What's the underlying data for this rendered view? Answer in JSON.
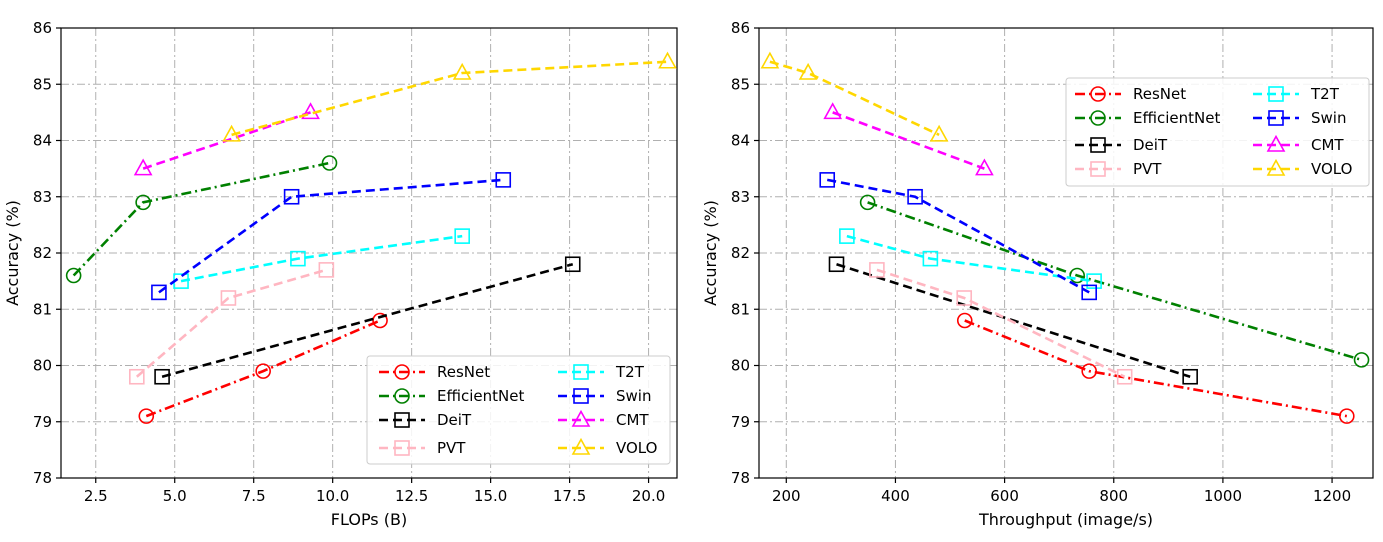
{
  "chart_data": [
    {
      "type": "line",
      "title": "",
      "xlabel": "FLOPs (B)",
      "ylabel": "Accuracy (%)",
      "xlim": [
        1.4,
        20.9
      ],
      "ylim": [
        78,
        86
      ],
      "x_ticks": [
        2.5,
        5.0,
        7.5,
        10.0,
        12.5,
        15.0,
        17.5,
        20.0
      ],
      "x_tick_labels": [
        "2.5",
        "5.0",
        "7.5",
        "10.0",
        "12.5",
        "15.0",
        "17.5",
        "20.0"
      ],
      "y_ticks": [
        78,
        79,
        80,
        81,
        82,
        83,
        84,
        85,
        86
      ],
      "y_tick_labels": [
        "78",
        "79",
        "80",
        "81",
        "82",
        "83",
        "84",
        "85",
        "86"
      ],
      "grid": true,
      "legend_position": "lower-right",
      "series": [
        {
          "name": "ResNet",
          "x": [
            4.1,
            7.8,
            11.5
          ],
          "y": [
            79.1,
            79.9,
            80.8
          ]
        },
        {
          "name": "EfficientNet",
          "x": [
            1.8,
            4.0,
            9.9
          ],
          "y": [
            81.6,
            82.9,
            83.6
          ]
        },
        {
          "name": "DeiT",
          "x": [
            4.6,
            17.6
          ],
          "y": [
            79.8,
            81.8
          ]
        },
        {
          "name": "PVT",
          "x": [
            3.8,
            6.7,
            9.8
          ],
          "y": [
            79.8,
            81.2,
            81.7
          ]
        },
        {
          "name": "T2T",
          "x": [
            5.2,
            8.9,
            14.1
          ],
          "y": [
            81.5,
            81.9,
            82.3
          ]
        },
        {
          "name": "Swin",
          "x": [
            4.5,
            8.7,
            15.4
          ],
          "y": [
            81.3,
            83.0,
            83.3
          ]
        },
        {
          "name": "CMT",
          "x": [
            4.0,
            9.3
          ],
          "y": [
            83.5,
            84.5
          ]
        },
        {
          "name": "VOLO",
          "x": [
            6.8,
            14.1,
            20.6
          ],
          "y": [
            84.1,
            85.2,
            85.4
          ]
        }
      ]
    },
    {
      "type": "line",
      "title": "",
      "xlabel": "Throughput (image/s)",
      "ylabel": "Accuracy (%)",
      "xlim": [
        150,
        1275
      ],
      "ylim": [
        78,
        86
      ],
      "x_ticks": [
        200,
        400,
        600,
        800,
        1000,
        1200
      ],
      "x_tick_labels": [
        "200",
        "400",
        "600",
        "800",
        "1000",
        "1200"
      ],
      "y_ticks": [
        78,
        79,
        80,
        81,
        82,
        83,
        84,
        85,
        86
      ],
      "y_tick_labels": [
        "78",
        "79",
        "80",
        "81",
        "82",
        "83",
        "84",
        "85",
        "86"
      ],
      "grid": true,
      "legend_position": "upper-right",
      "series": [
        {
          "name": "ResNet",
          "x": [
            527,
            755,
            1227
          ],
          "y": [
            80.8,
            79.9,
            79.1
          ]
        },
        {
          "name": "EfficientNet",
          "x": [
            349,
            733,
            1254
          ],
          "y": [
            82.9,
            81.6,
            80.1
          ]
        },
        {
          "name": "DeiT",
          "x": [
            292,
            940
          ],
          "y": [
            81.8,
            79.8
          ]
        },
        {
          "name": "PVT",
          "x": [
            366,
            526,
            820
          ],
          "y": [
            81.7,
            81.2,
            79.8
          ]
        },
        {
          "name": "T2T",
          "x": [
            311,
            464,
            764
          ],
          "y": [
            82.3,
            81.9,
            81.5
          ]
        },
        {
          "name": "Swin",
          "x": [
            275,
            436,
            755
          ],
          "y": [
            83.3,
            83.0,
            81.3
          ]
        },
        {
          "name": "CMT",
          "x": [
            285,
            563
          ],
          "y": [
            84.5,
            83.5
          ]
        },
        {
          "name": "VOLO",
          "x": [
            170,
            240,
            480
          ],
          "y": [
            85.4,
            85.2,
            84.1
          ]
        }
      ]
    }
  ],
  "series_styles": {
    "ResNet": {
      "color": "#ff0000",
      "marker": "circle",
      "dash": "10,4,2,4"
    },
    "EfficientNet": {
      "color": "#008000",
      "marker": "circle",
      "dash": "10,4,2,4"
    },
    "DeiT": {
      "color": "#000000",
      "marker": "square",
      "dash": "9,5"
    },
    "PVT": {
      "color": "#ffb6c1",
      "marker": "square",
      "dash": "9,5"
    },
    "T2T": {
      "color": "#00ffff",
      "marker": "square",
      "dash": "9,5"
    },
    "Swin": {
      "color": "#0000ff",
      "marker": "square",
      "dash": "9,5"
    },
    "CMT": {
      "color": "#ff00ff",
      "marker": "triangle",
      "dash": "9,5"
    },
    "VOLO": {
      "color": "#ffd700",
      "marker": "triangle",
      "dash": "9,5"
    }
  },
  "colors": {
    "grid": "#b0b0b0",
    "axis": "#000000"
  }
}
